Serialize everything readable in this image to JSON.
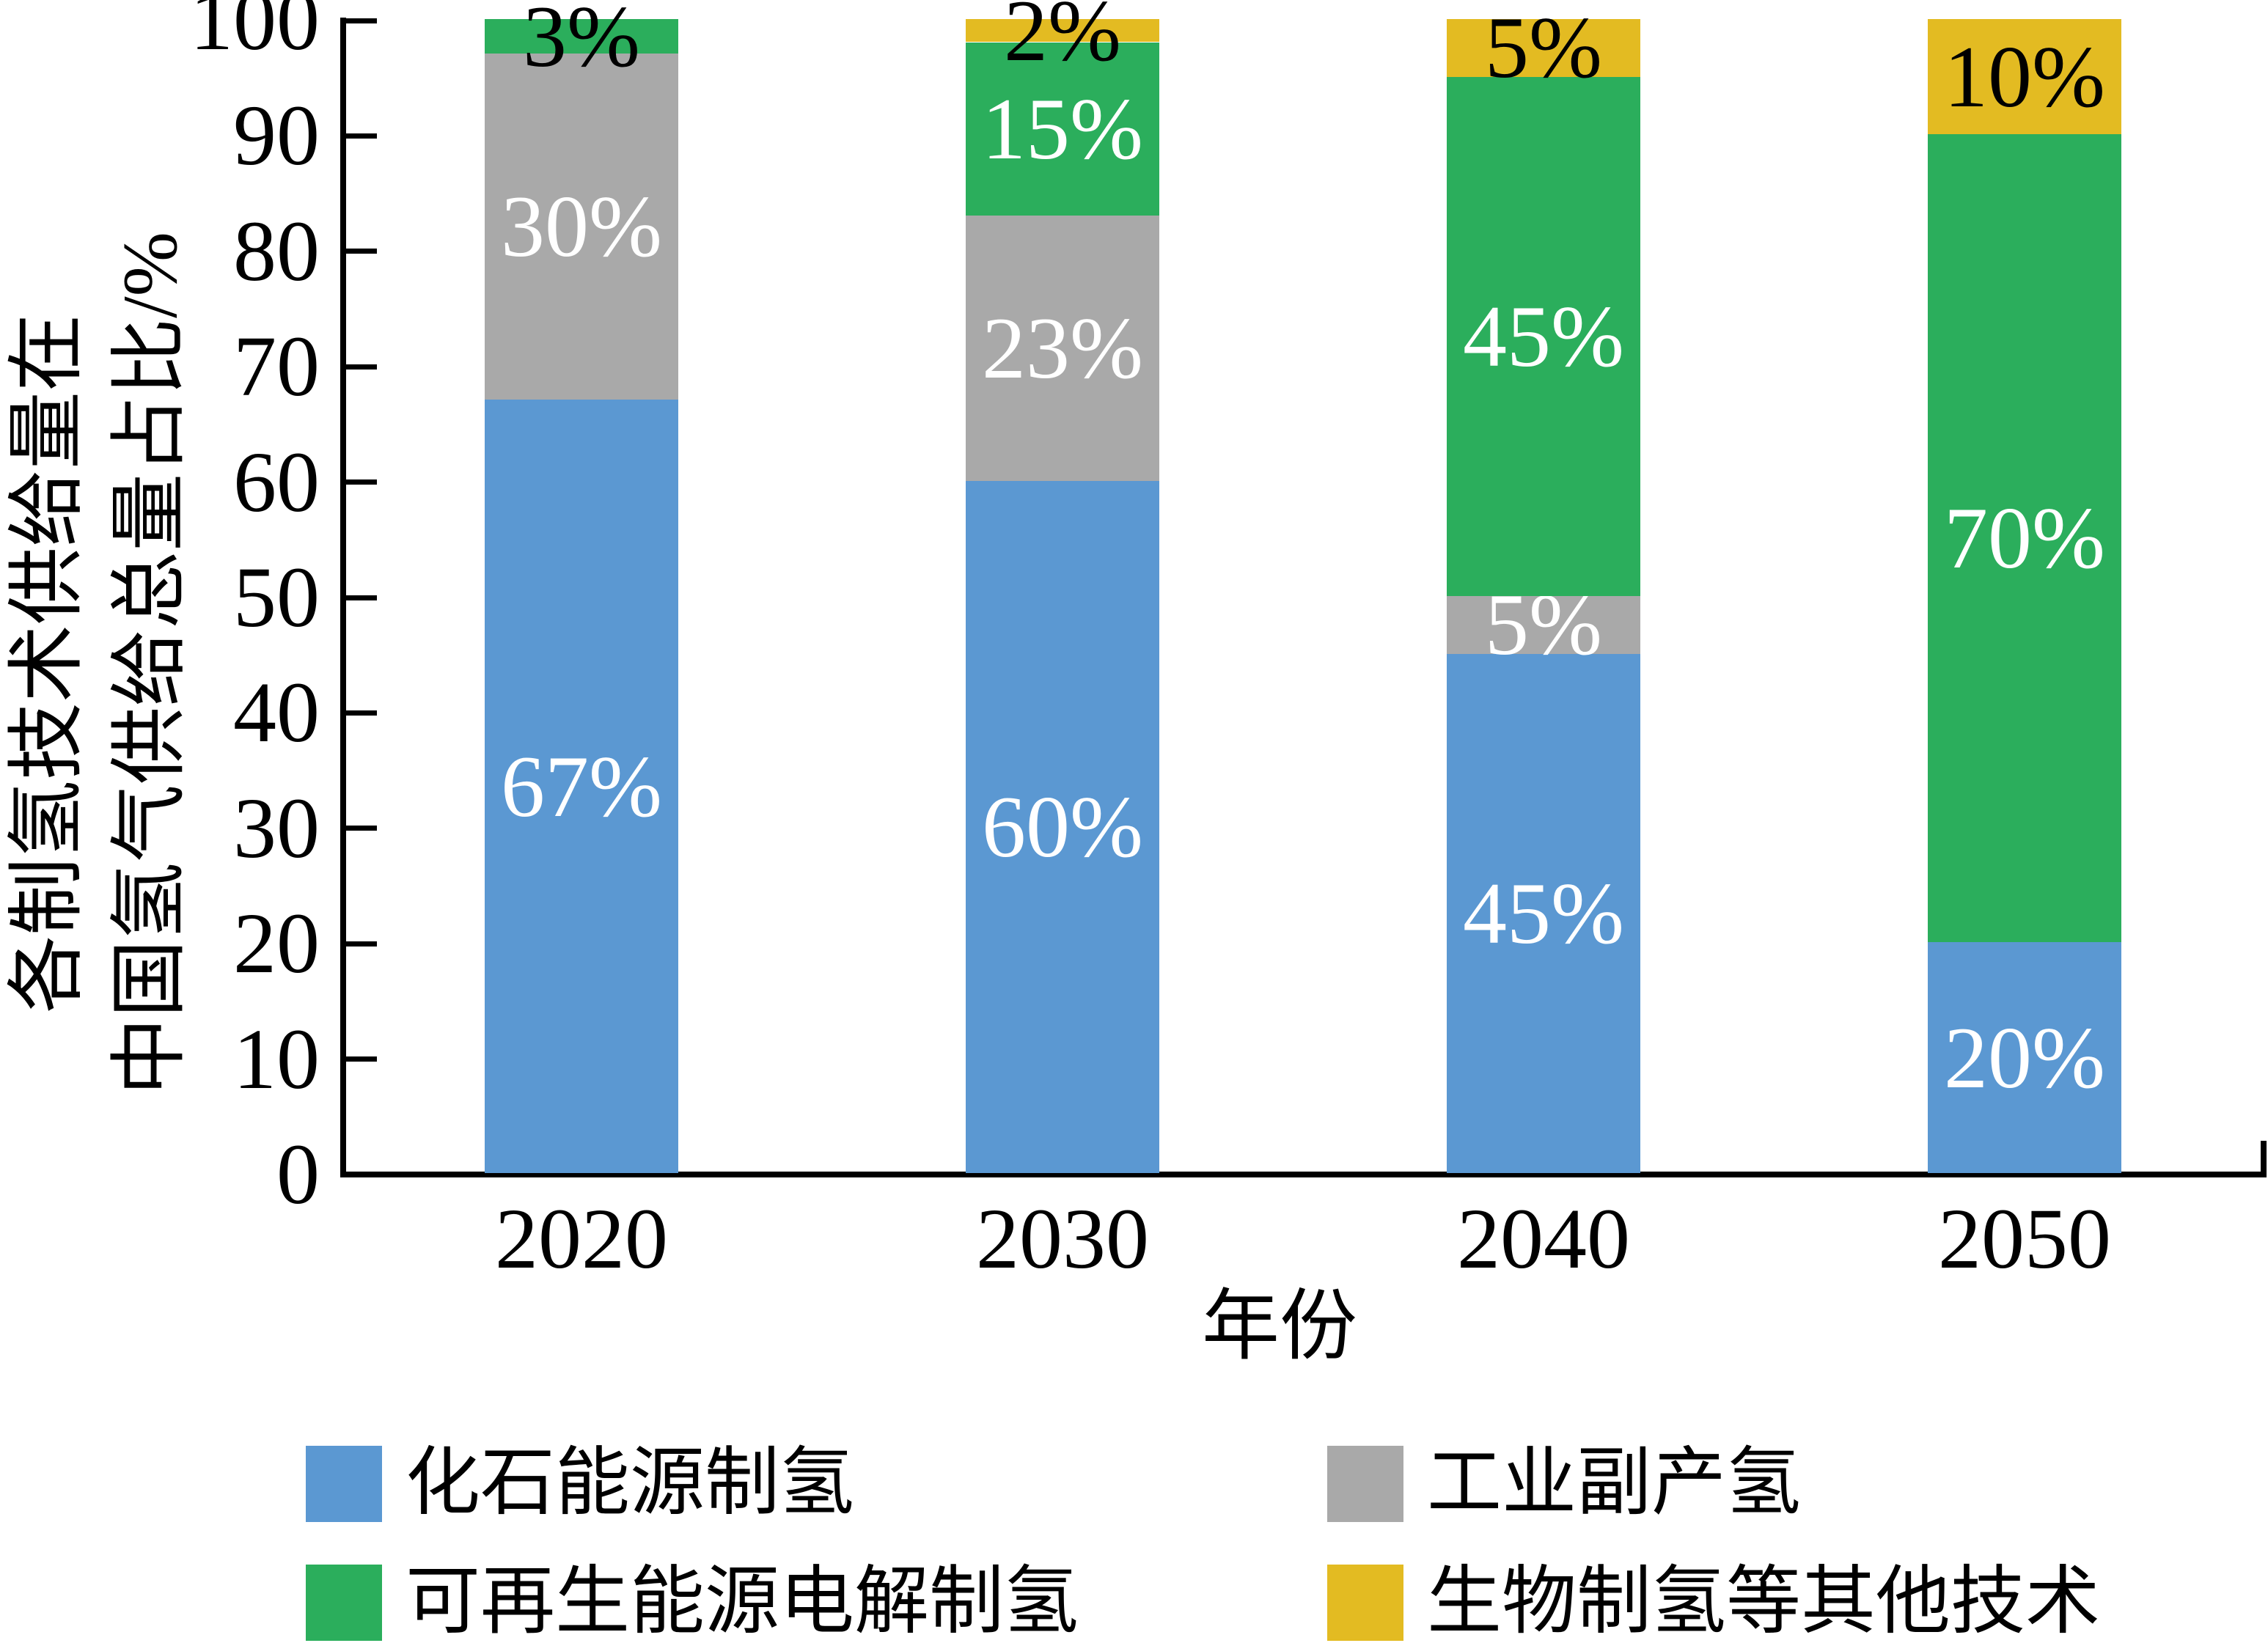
{
  "chart_data": {
    "type": "bar",
    "stacked": true,
    "title": "",
    "xlabel": "年份",
    "ylabel_line1": "各制氢技术供给量在",
    "ylabel_line2": "中国氢气供给总量占比/%",
    "categories": [
      "2020",
      "2030",
      "2040",
      "2050"
    ],
    "series": [
      {
        "name": "化石能源制氢",
        "color": "#5B98D2",
        "values": [
          67,
          60,
          45,
          20
        ]
      },
      {
        "name": "工业副产氢",
        "color": "#A9A9A9",
        "values": [
          30,
          23,
          5,
          0
        ]
      },
      {
        "name": "可再生能源电解制氢",
        "color": "#2BAE5C",
        "values": [
          3,
          15,
          45,
          70
        ]
      },
      {
        "name": "生物制氢等其他技术",
        "color": "#E3BB22",
        "values": [
          0,
          2,
          5,
          10
        ]
      }
    ],
    "bar_labels": [
      [
        {
          "text": "67%",
          "color": "#FFFFFF"
        },
        {
          "text": "30%",
          "color": "#FFFFFF"
        },
        {
          "text": "3%",
          "color": "#000000"
        },
        null
      ],
      [
        {
          "text": "60%",
          "color": "#FFFFFF"
        },
        {
          "text": "23%",
          "color": "#FFFFFF"
        },
        {
          "text": "15%",
          "color": "#FFFFFF"
        },
        {
          "text": "2%",
          "color": "#000000"
        }
      ],
      [
        {
          "text": "45%",
          "color": "#FFFFFF"
        },
        {
          "text": "5%",
          "color": "#FFFFFF"
        },
        {
          "text": "45%",
          "color": "#FFFFFF"
        },
        {
          "text": "5%",
          "color": "#000000"
        }
      ],
      [
        {
          "text": "20%",
          "color": "#FFFFFF"
        },
        null,
        {
          "text": "70%",
          "color": "#FFFFFF"
        },
        {
          "text": "10%",
          "color": "#000000"
        }
      ]
    ],
    "ylim": [
      0,
      100
    ],
    "yticks": [
      0,
      10,
      20,
      30,
      40,
      50,
      60,
      70,
      80,
      90,
      100
    ],
    "grid": false,
    "axis_color": "#000000",
    "legend_position": "bottom"
  },
  "legend": {
    "columns": [
      {
        "items": [
          {
            "label": "化石能源制氢",
            "color": "#5B98D2"
          },
          {
            "label": "可再生能源电解制氢",
            "color": "#2BAE5C"
          }
        ]
      },
      {
        "items": [
          {
            "label": "工业副产氢",
            "color": "#A9A9A9"
          },
          {
            "label": "生物制氢等其他技术",
            "color": "#E3BB22"
          }
        ]
      }
    ]
  }
}
